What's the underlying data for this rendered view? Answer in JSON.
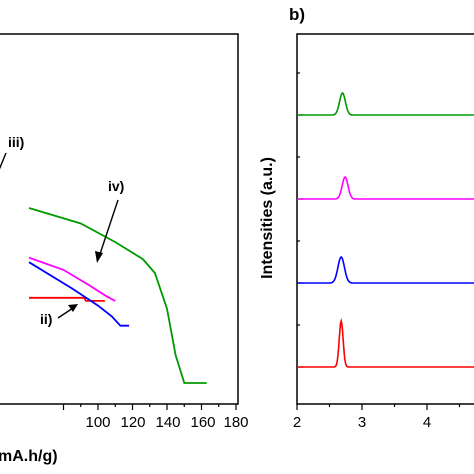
{
  "chart_data": [
    {
      "panel": "a",
      "type": "line",
      "xlabel": "mA.h/g)",
      "xlim": [
        60,
        180
      ],
      "xticks": [
        100,
        120,
        140,
        160,
        180
      ],
      "grid": false,
      "series": [
        {
          "color": "#ff0000",
          "points": [
            [
              60,
              2.72
            ],
            [
              92,
              2.72
            ],
            [
              93,
              2.7
            ],
            [
              104,
              2.7
            ]
          ]
        },
        {
          "color": "#ff00ff",
          "points": [
            [
              60,
              2.98
            ],
            [
              80,
              2.9
            ],
            [
              95,
              2.8
            ],
            [
              105,
              2.73
            ],
            [
              110,
              2.7
            ]
          ]
        },
        {
          "color": "#0000ff",
          "points": [
            [
              60,
              2.95
            ],
            [
              85,
              2.78
            ],
            [
              100,
              2.67
            ],
            [
              108,
              2.6
            ],
            [
              113,
              2.54
            ],
            [
              118,
              2.54
            ]
          ]
        },
        {
          "color": "#009900",
          "points": [
            [
              60,
              3.3
            ],
            [
              90,
              3.2
            ],
            [
              110,
              3.08
            ],
            [
              126,
              2.97
            ],
            [
              133,
              2.88
            ],
            [
              140,
              2.65
            ],
            [
              145,
              2.35
            ],
            [
              150,
              2.17
            ],
            [
              163,
              2.17
            ]
          ]
        }
      ],
      "annotations": [
        {
          "text": "iii)"
        },
        {
          "text": "iv)"
        },
        {
          "text": "ii)"
        }
      ]
    },
    {
      "panel": "b",
      "type": "line",
      "ylabel": "Intensities (a.u.)",
      "xlim": [
        2,
        5.6
      ],
      "xticks": [
        2,
        3,
        4
      ],
      "grid": false,
      "series": [
        {
          "color": "#009900",
          "peak_x": 2.7,
          "width": 0.045,
          "height": 22
        },
        {
          "color": "#ff00ff",
          "peak_x": 2.74,
          "width": 0.045,
          "height": 22
        },
        {
          "color": "#0000ff",
          "peak_x": 2.68,
          "width": 0.05,
          "height": 26
        },
        {
          "color": "#ff0000",
          "peak_x": 2.68,
          "width": 0.03,
          "height": 46
        }
      ]
    }
  ],
  "panel_a": {
    "x_title": "mA.h/g)",
    "tick_labels": [
      "100",
      "120",
      "140",
      "160",
      "180"
    ]
  },
  "panel_b": {
    "label": "b)",
    "y_title": "Intensities (a.u.)",
    "tick_labels": [
      "2",
      "3",
      "4"
    ]
  },
  "annotations": {
    "iii": "iii)",
    "iv": "iv)",
    "ii": "ii)"
  }
}
